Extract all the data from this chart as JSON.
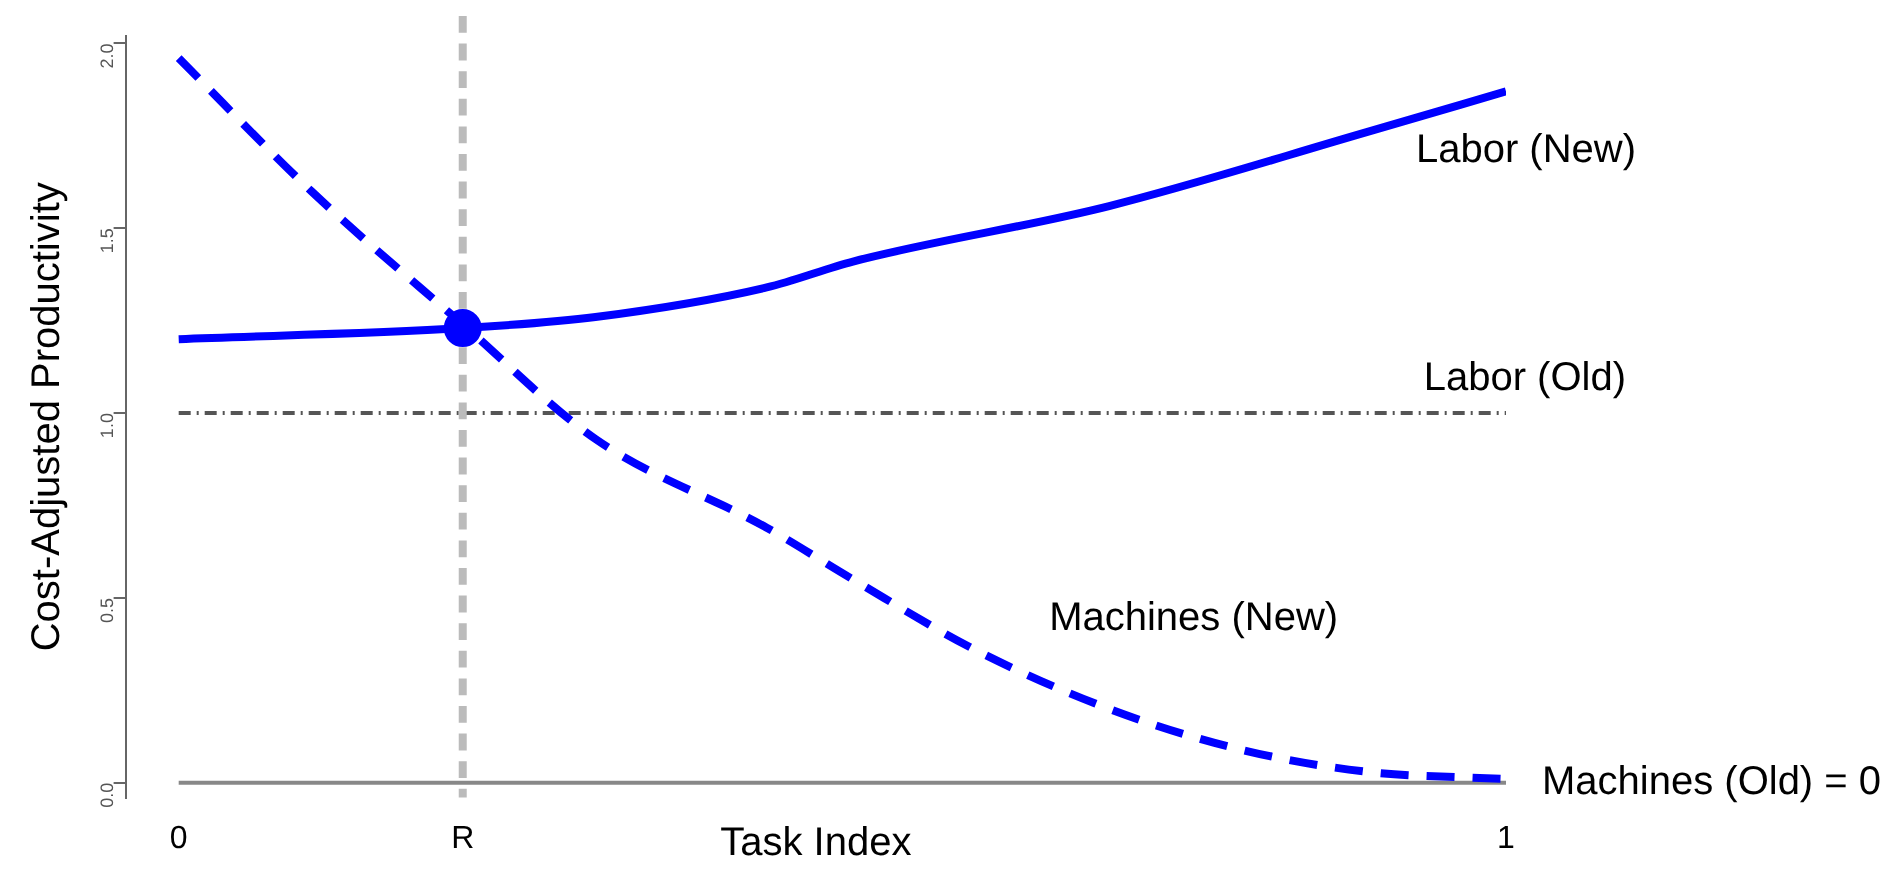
{
  "chart_data": {
    "type": "line",
    "xlabel": "Task Index",
    "ylabel": "Cost-Adjusted Productivity",
    "xlim": [
      -0.04,
      1.0
    ],
    "ylim": [
      -0.04,
      2.02
    ],
    "xticks": [
      0,
      {
        "value": 0.214,
        "label": "R"
      },
      1
    ],
    "yticks": [
      {
        "value": 0,
        "label": "0.0"
      },
      {
        "value": 0.5,
        "label": "0.5"
      },
      {
        "value": 1,
        "label": "1.0"
      },
      {
        "value": 1.5,
        "label": "1.5"
      },
      {
        "value": 2,
        "label": "2.0"
      }
    ],
    "grid": false,
    "legend": false,
    "series": [
      {
        "name": "Labor (New)",
        "color": "#0000ff",
        "line_style": "solid",
        "marker": "none",
        "x": [
          0,
          0.214,
          0.314,
          0.443,
          0.508,
          0.701,
          0.895,
          1
        ],
        "values": [
          1.2,
          1.23,
          1.26,
          1.34,
          1.41,
          1.56,
          1.76,
          1.87
        ]
      },
      {
        "name": "Machines (New)",
        "color": "#0000ff",
        "line_style": "dashed",
        "marker": "none",
        "x": [
          0,
          0.1,
          0.214,
          0.314,
          0.443,
          0.508,
          0.6,
          0.701,
          0.8,
          0.895,
          1
        ],
        "values": [
          1.96,
          1.6,
          1.24,
          0.93,
          0.69,
          0.55,
          0.36,
          0.2,
          0.09,
          0.03,
          0.01
        ]
      },
      {
        "type": "scatter",
        "color": "#0000ff",
        "marker": "circle",
        "x": [
          0.214
        ],
        "values": [
          1.23
        ]
      },
      {
        "name": "Machines (Old) = 0",
        "color": "#888888",
        "line_style": "solid",
        "marker": "none",
        "x": [
          0,
          1
        ],
        "values": [
          0,
          0
        ]
      }
    ],
    "ref_lines": [
      {
        "axis": "y",
        "value": 1,
        "label": "Labor (Old)",
        "color": "#555555",
        "line_style": "dotted"
      },
      {
        "axis": "x",
        "value": 0.214,
        "color": "#bbbbbb",
        "line_style": "dashed"
      }
    ]
  }
}
